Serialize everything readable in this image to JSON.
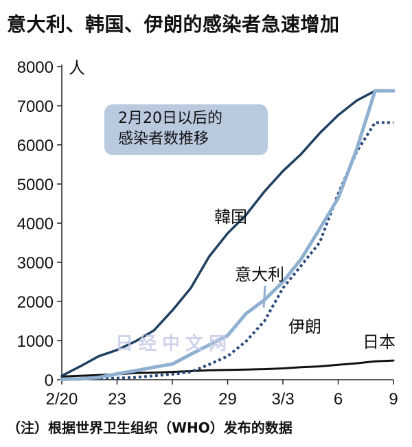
{
  "title": "意大利、韩国、伊朗的感染者急速增加",
  "note": "（注）根据世界卫生组织（WHO）发布的数据",
  "annotation_box": [
    "2月20日以后的",
    "感染者数推移"
  ],
  "watermark": "日经中文网",
  "chart_data": {
    "type": "line",
    "unit_label": "人",
    "ylim": [
      0,
      8000
    ],
    "yticks": [
      0,
      1000,
      2000,
      3000,
      4000,
      5000,
      6000,
      7000,
      8000
    ],
    "xtick_labels": [
      {
        "label": "2/20",
        "x": 0
      },
      {
        "label": "23",
        "x": 3
      },
      {
        "label": "26",
        "x": 6
      },
      {
        "label": "29",
        "x": 9
      },
      {
        "label": "3/3",
        "x": 12
      },
      {
        "label": "6",
        "x": 15
      },
      {
        "label": "9",
        "x": 18
      }
    ],
    "x": [
      0,
      1,
      2,
      3,
      4,
      5,
      6,
      7,
      8,
      9,
      10,
      11,
      12,
      13,
      14,
      15,
      16,
      17,
      18
    ],
    "series": [
      {
        "name": "韓国",
        "color": "#1f4060",
        "style": "solid",
        "values": [
          100,
          340,
          600,
          760,
          980,
          1260,
          1770,
          2340,
          3150,
          3740,
          4210,
          4810,
          5330,
          5770,
          6300,
          6760,
          7130,
          7380,
          7380
        ]
      },
      {
        "name": "意大利",
        "color": "#8fb0d0",
        "style": "solid",
        "values": [
          10,
          20,
          60,
          150,
          230,
          320,
          400,
          650,
          890,
          1130,
          1690,
          2040,
          2500,
          3090,
          3860,
          4640,
          5880,
          7380,
          7380
        ]
      },
      {
        "name": "伊朗",
        "color": "#2a4a7a",
        "style": "dotted",
        "values": [
          10,
          20,
          30,
          40,
          60,
          100,
          140,
          200,
          390,
          600,
          980,
          1500,
          2340,
          2920,
          3510,
          4750,
          5820,
          6570,
          6570
        ]
      },
      {
        "name": "日本",
        "color": "#111111",
        "style": "solid",
        "values": [
          80,
          100,
          120,
          140,
          170,
          180,
          200,
          220,
          240,
          250,
          260,
          270,
          290,
          320,
          340,
          380,
          420,
          470,
          490
        ]
      }
    ]
  }
}
